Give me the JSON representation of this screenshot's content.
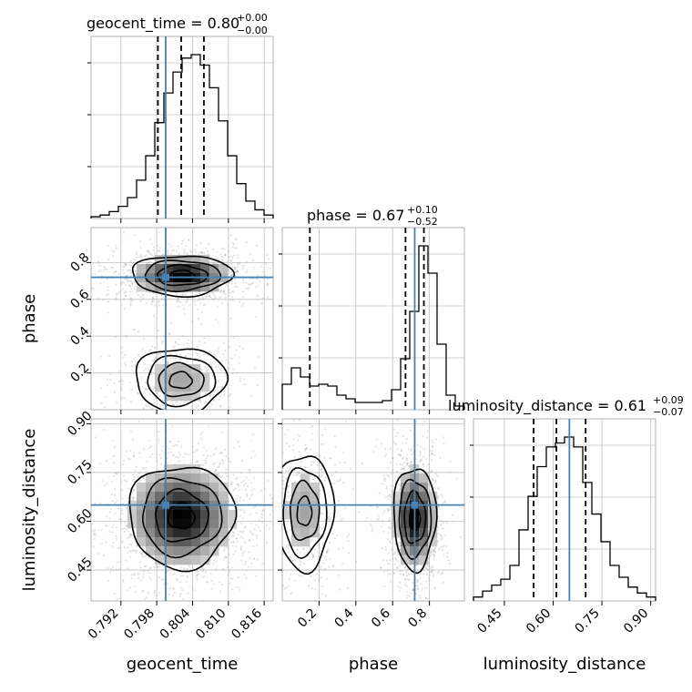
{
  "parameters": [
    "geocent_time",
    "phase",
    "luminosity_distance"
  ],
  "titles": [
    {
      "name": "geocent_time",
      "value": "0.80",
      "plus": "+0.00",
      "minus": "−0.00"
    },
    {
      "name": "phase",
      "value": "0.67",
      "plus": "+0.10",
      "minus": "−0.52"
    },
    {
      "name": "luminosity_distance",
      "value": "0.61",
      "plus": "+0.09",
      "minus": "−0.07"
    }
  ],
  "colors": {
    "truth": "#4682b4",
    "hist": "#000000",
    "grid": "#c0c0c0",
    "points": "#9a9a9a"
  },
  "chart_data": {
    "type": "corner",
    "truths": {
      "geocent_time": 0.7995,
      "phase": 0.72,
      "luminosity_distance": 0.65
    },
    "axes": {
      "geocent_time": {
        "range": [
          0.787,
          0.8175
        ],
        "ticks": [
          0.792,
          0.798,
          0.804,
          0.81,
          0.816
        ],
        "tick_labels": [
          "0.792",
          "0.798",
          "0.804",
          "0.810",
          "0.816"
        ]
      },
      "phase": {
        "range": [
          0.0,
          0.99
        ],
        "ticks": [
          0.2,
          0.4,
          0.6,
          0.8
        ],
        "tick_labels": [
          "0.2",
          "0.4",
          "0.6",
          "0.8"
        ]
      },
      "luminosity_distance": {
        "range": [
          0.355,
          0.915
        ],
        "ticks": [
          0.45,
          0.6,
          0.75,
          0.9
        ],
        "tick_labels": [
          "0.45",
          "0.60",
          "0.75",
          "0.90"
        ]
      }
    },
    "quantiles": {
      "geocent_time": [
        0.7982,
        0.8021,
        0.8059
      ],
      "phase": [
        0.15,
        0.67,
        0.77
      ],
      "luminosity_distance": [
        0.54,
        0.61,
        0.7
      ]
    },
    "histograms": {
      "geocent_time": {
        "edges_range": [
          0.787,
          0.8175
        ],
        "counts": [
          1,
          2,
          4,
          7,
          12,
          22,
          36,
          55,
          72,
          84,
          92,
          94,
          88,
          75,
          56,
          36,
          20,
          10,
          5,
          2
        ]
      },
      "phase": {
        "edges_range": [
          0.0,
          0.99
        ],
        "counts": [
          14,
          23,
          18,
          13,
          14,
          13,
          8,
          6,
          4,
          4,
          4,
          5,
          11,
          28,
          54,
          90,
          75,
          36,
          8,
          2
        ]
      },
      "luminosity_distance": {
        "edges_range": [
          0.355,
          0.915
        ],
        "counts": [
          2,
          5,
          8,
          11,
          18,
          36,
          53,
          68,
          78,
          80,
          83,
          78,
          60,
          44,
          30,
          18,
          12,
          7,
          4,
          2
        ]
      }
    },
    "densities": {
      "phase_vs_geocent_time": [
        {
          "mx": 0.8022,
          "my": 0.73,
          "sx": 0.004,
          "sy": 0.052,
          "w": 0.72
        },
        {
          "mx": 0.802,
          "my": 0.16,
          "sx": 0.0036,
          "sy": 0.085,
          "w": 0.28
        }
      ],
      "luminosity_distance_vs_geocent_time": [
        {
          "mx": 0.8021,
          "my": 0.615,
          "sx": 0.0042,
          "sy": 0.075,
          "w": 1.0
        }
      ],
      "luminosity_distance_vs_phase": [
        {
          "mx": 0.72,
          "my": 0.61,
          "sx": 0.055,
          "sy": 0.075,
          "w": 0.7
        },
        {
          "mx": 0.12,
          "my": 0.63,
          "sx": 0.075,
          "sy": 0.085,
          "w": 0.3
        }
      ]
    }
  }
}
